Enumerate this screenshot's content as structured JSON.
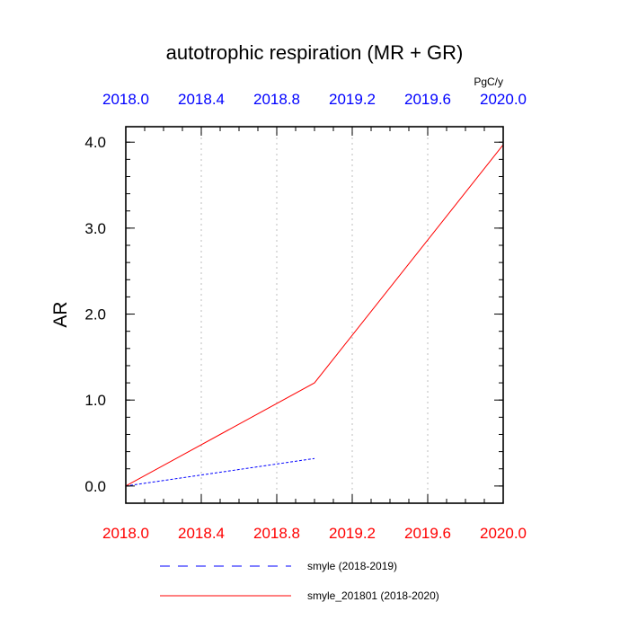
{
  "chart_data": {
    "type": "line",
    "title": "autotrophic respiration (MR + GR)",
    "xlabel": "",
    "ylabel": "AR",
    "units": "PgC/y",
    "xlim": [
      2018.0,
      2020.0
    ],
    "ylim": [
      -0.2,
      4.18
    ],
    "x_ticks": [
      "2018.0",
      "2018.4",
      "2018.8",
      "2019.2",
      "2019.6",
      "2020.0"
    ],
    "x_tick_values": [
      2018.0,
      2018.4,
      2018.8,
      2019.2,
      2019.6,
      2020.0
    ],
    "y_ticks": [
      "0.0",
      "1.0",
      "2.0",
      "3.0",
      "4.0"
    ],
    "y_tick_values": [
      0,
      1,
      2,
      3,
      4
    ],
    "grid": "vertical dotted",
    "legend_position": "bottom",
    "colors": {
      "bottom_ticks": "#ff0000",
      "top_ticks": "#0000ff",
      "grid": "#c8c8c8"
    },
    "series": [
      {
        "name": "smyle (2018-2019)",
        "color": "#0000ff",
        "dash": "dashed",
        "x": [
          2018.0,
          2019.0
        ],
        "y": [
          0.0,
          0.32
        ]
      },
      {
        "name": "smyle_201801 (2018-2020)",
        "color": "#ff0000",
        "dash": "solid",
        "x": [
          2018.0,
          2019.0,
          2020.0
        ],
        "y": [
          0.0,
          1.2,
          3.97
        ]
      }
    ]
  }
}
